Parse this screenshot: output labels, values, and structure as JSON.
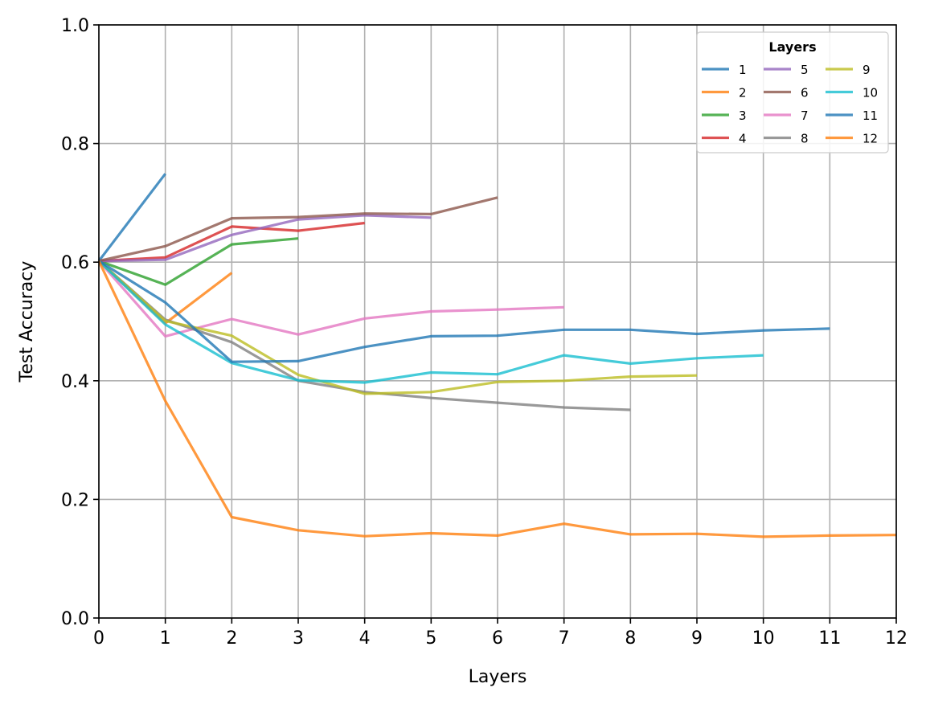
{
  "chart_data": {
    "type": "line",
    "title": "",
    "xlabel": "Layers",
    "ylabel": "Test Accuracy",
    "xlim": [
      0,
      12
    ],
    "ylim": [
      0.0,
      1.0
    ],
    "xticks": [
      "0",
      "1",
      "2",
      "3",
      "4",
      "5",
      "6",
      "7",
      "8",
      "9",
      "10",
      "11",
      "12"
    ],
    "yticks": [
      "0.0",
      "0.2",
      "0.4",
      "0.6",
      "0.8",
      "1.0"
    ],
    "grid": true,
    "legend": {
      "title": "Layers",
      "position": "top-right",
      "columns": 3
    },
    "series": [
      {
        "name": "1",
        "color": "#1f77b4",
        "x": [
          0,
          1
        ],
        "y": [
          0.602,
          0.749
        ]
      },
      {
        "name": "2",
        "color": "#ff7f0e",
        "x": [
          0,
          1,
          2
        ],
        "y": [
          0.602,
          0.497,
          0.582
        ]
      },
      {
        "name": "3",
        "color": "#2ca02c",
        "x": [
          0,
          1,
          2,
          3
        ],
        "y": [
          0.602,
          0.562,
          0.63,
          0.64
        ]
      },
      {
        "name": "4",
        "color": "#d62728",
        "x": [
          0,
          1,
          2,
          3,
          4
        ],
        "y": [
          0.602,
          0.608,
          0.66,
          0.653,
          0.666
        ]
      },
      {
        "name": "5",
        "color": "#9467bd",
        "x": [
          0,
          1,
          2,
          3,
          4,
          5
        ],
        "y": [
          0.602,
          0.604,
          0.646,
          0.672,
          0.679,
          0.675
        ]
      },
      {
        "name": "6",
        "color": "#8c564b",
        "x": [
          0,
          1,
          2,
          3,
          4,
          5,
          6
        ],
        "y": [
          0.602,
          0.627,
          0.674,
          0.676,
          0.682,
          0.681,
          0.709
        ]
      },
      {
        "name": "7",
        "color": "#e377c2",
        "x": [
          0,
          1,
          2,
          3,
          4,
          5,
          6,
          7
        ],
        "y": [
          0.602,
          0.475,
          0.504,
          0.478,
          0.505,
          0.517,
          0.52,
          0.524
        ]
      },
      {
        "name": "8",
        "color": "#7f7f7f",
        "x": [
          0,
          1,
          2,
          3,
          4,
          5,
          6,
          7,
          8
        ],
        "y": [
          0.602,
          0.503,
          0.465,
          0.4,
          0.381,
          0.371,
          0.363,
          0.355,
          0.351
        ]
      },
      {
        "name": "9",
        "color": "#bcbd22",
        "x": [
          0,
          1,
          2,
          3,
          4,
          5,
          6,
          7,
          8,
          9
        ],
        "y": [
          0.602,
          0.501,
          0.476,
          0.41,
          0.378,
          0.381,
          0.398,
          0.4,
          0.407,
          0.409
        ]
      },
      {
        "name": "10",
        "color": "#17becf",
        "x": [
          0,
          1,
          2,
          3,
          4,
          5,
          6,
          7,
          8,
          9,
          10
        ],
        "y": [
          0.602,
          0.495,
          0.43,
          0.401,
          0.397,
          0.414,
          0.411,
          0.443,
          0.429,
          0.438,
          0.443
        ]
      },
      {
        "name": "11",
        "color": "#1f77b4",
        "x": [
          0,
          1,
          2,
          3,
          4,
          5,
          6,
          7,
          8,
          9,
          10,
          11
        ],
        "y": [
          0.602,
          0.532,
          0.432,
          0.433,
          0.457,
          0.475,
          0.476,
          0.486,
          0.486,
          0.479,
          0.485,
          0.488
        ]
      },
      {
        "name": "12",
        "color": "#ff7f0e",
        "x": [
          0,
          1,
          2,
          3,
          4,
          5,
          6,
          7,
          8,
          9,
          10,
          11,
          12
        ],
        "y": [
          0.602,
          0.366,
          0.17,
          0.148,
          0.138,
          0.143,
          0.139,
          0.159,
          0.141,
          0.142,
          0.137,
          0.139,
          0.14
        ]
      }
    ]
  }
}
